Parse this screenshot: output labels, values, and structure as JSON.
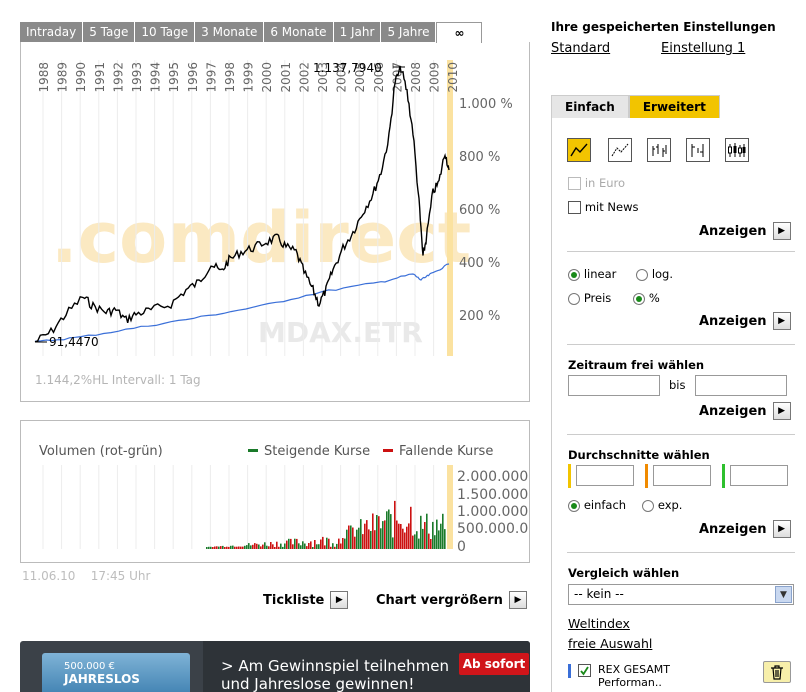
{
  "tabs": [
    "Intraday",
    "5 Tage",
    "10 Tage",
    "3 Monate",
    "6 Monate",
    "1 Jahr",
    "5 Jahre",
    "∞"
  ],
  "chart": {
    "years": [
      "1988",
      "1989",
      "1990",
      "1991",
      "1992",
      "1993",
      "1994",
      "1995",
      "1996",
      "1997",
      "1998",
      "1999",
      "2000",
      "2001",
      "2002",
      "2003",
      "2004",
      "2005",
      "2006",
      "2007",
      "2008",
      "2009",
      "2010"
    ],
    "max_label": "1.137,7940",
    "min_label": "91,4470",
    "y_ticks": [
      "1.000 %",
      "800 %",
      "600 %",
      "400 %",
      "200 %"
    ],
    "watermark": ".comdirect",
    "symbol": "MDAX.ETR",
    "footer": "1.144,2%HL Intervall: 1 Tag"
  },
  "volume": {
    "title": "Volumen (rot-grün)",
    "legend_up": "Steigende Kurse",
    "legend_down": "Fallende Kurse",
    "y_ticks": [
      "2.000.000",
      "1.500.000",
      "1.000.000",
      "500.000.0",
      "0"
    ]
  },
  "timestamp": {
    "date": "11.06.10",
    "time": "17:45 Uhr"
  },
  "actions": {
    "ticklist": "Tickliste",
    "enlarge": "Chart vergrößern"
  },
  "banner": {
    "badge_amount": "500.000 €",
    "badge_text": "JAHRESLOS",
    "line1": "> Am Gewinnspiel teilnehmen",
    "line2": "und Jahreslose gewinnen!",
    "button": "Ab sofort"
  },
  "settings": {
    "title": "Ihre gespeicherten Einstellungen",
    "standard": "Standard",
    "custom": "Einstellung 1"
  },
  "rtabs": {
    "simple": "Einfach",
    "extended": "Erweitert"
  },
  "panel": {
    "in_euro": "in Euro",
    "with_news": "mit News",
    "show": "Anzeigen",
    "linear": "linear",
    "log": "log.",
    "price": "Preis",
    "percent": "%",
    "range_title": "Zeitraum frei wählen",
    "to": "bis",
    "averages_title": "Durchschnitte wählen",
    "simple": "einfach",
    "exp": "exp.",
    "compare_title": "Vergleich wählen",
    "compare_value": "-- kein --",
    "world_index": "Weltindex",
    "free_choice": "freie Auswahl",
    "rex_line1": "REX GESAMT",
    "rex_line2": "Performan.."
  },
  "colors": {
    "accent": "#f2c400",
    "up": "#1a7a2a",
    "down": "#cc1111",
    "compare": "#3a6fd8"
  }
}
